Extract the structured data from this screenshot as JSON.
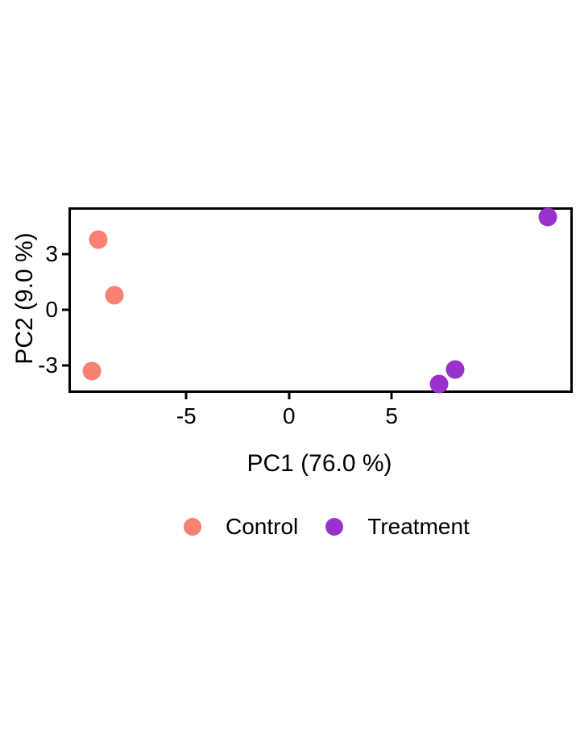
{
  "figure": {
    "background": "#ffffff",
    "text_color": "#000000",
    "border_color": "#000000"
  },
  "chart_data": {
    "type": "scatter",
    "title": "",
    "xlabel": "PC1 (76.0 %)",
    "ylabel": "PC2 (9.0 %)",
    "xlim": [
      -10.7,
      13.7
    ],
    "ylim": [
      -4.3,
      5.5
    ],
    "x_ticks": [
      "-5",
      "0",
      "5"
    ],
    "x_tick_values": [
      -5,
      0,
      5
    ],
    "y_ticks": [
      "3",
      "0",
      "-3"
    ],
    "y_tick_values": [
      3,
      0,
      -3
    ],
    "grid": false,
    "legend_position": "bottom",
    "series": [
      {
        "name": "Control",
        "color": "#FA8072",
        "points": [
          {
            "x": -9.3,
            "y": 3.8
          },
          {
            "x": -8.5,
            "y": 0.8
          },
          {
            "x": -9.6,
            "y": -3.3
          }
        ]
      },
      {
        "name": "Treatment",
        "color": "#9932CC",
        "points": [
          {
            "x": 12.6,
            "y": 5.0
          },
          {
            "x": 7.3,
            "y": -4.0
          },
          {
            "x": 8.1,
            "y": -3.2
          }
        ]
      }
    ]
  }
}
